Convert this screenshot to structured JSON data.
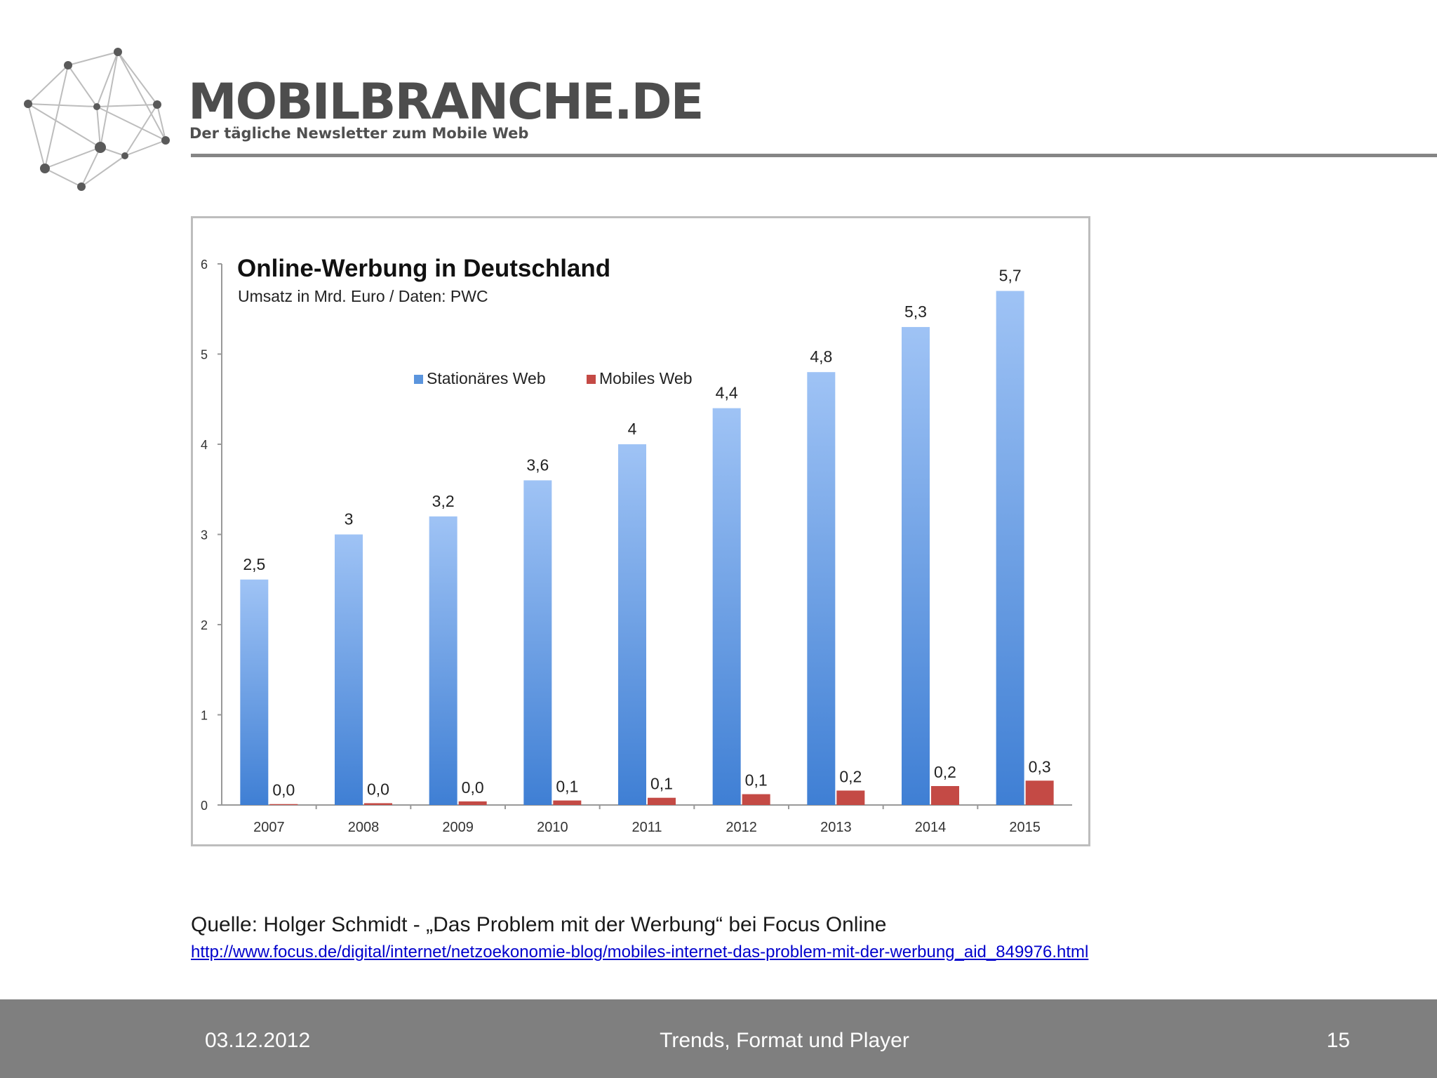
{
  "brand": {
    "name": "MOBILBRANCHE.DE",
    "tagline": "Der tägliche Newsletter zum Mobile Web"
  },
  "colors": {
    "stationary": "#5b95dd",
    "mobile": "#c44a45",
    "footer": "#7f7f7f",
    "header_rule": "#858585"
  },
  "chart_data": {
    "type": "bar",
    "title": "Online-Werbung in Deutschland",
    "subtitle": "Umsatz in Mrd. Euro / Daten: PWC",
    "xlabel": "",
    "ylabel": "",
    "ylim": [
      0,
      6
    ],
    "yticks": [
      "0",
      "1",
      "2",
      "3",
      "4",
      "5",
      "6"
    ],
    "grid": false,
    "legend_position": "top-center",
    "categories": [
      "2007",
      "2008",
      "2009",
      "2010",
      "2011",
      "2012",
      "2013",
      "2014",
      "2015"
    ],
    "series": [
      {
        "name": "Stationäres Web",
        "values": [
          2.5,
          3.0,
          3.2,
          3.6,
          4.0,
          4.4,
          4.8,
          5.3,
          5.7
        ],
        "labels": [
          "2,5",
          "3",
          "3,2",
          "3,6",
          "4",
          "4,4",
          "4,8",
          "5,3",
          "5,7"
        ]
      },
      {
        "name": "Mobiles Web",
        "values": [
          0.01,
          0.02,
          0.04,
          0.05,
          0.08,
          0.12,
          0.16,
          0.21,
          0.27
        ],
        "labels": [
          "0,0",
          "0,0",
          "0,0",
          "0,1",
          "0,1",
          "0,1",
          "0,2",
          "0,2",
          "0,3"
        ]
      }
    ]
  },
  "source": {
    "text": "Quelle: Holger Schmidt - „Das Problem mit der Werbung“ bei Focus Online",
    "url": "http://www.focus.de/digital/internet/netzoekonomie-blog/mobiles-internet-das-problem-mit-der-werbung_aid_849976.html"
  },
  "footer": {
    "date": "03.12.2012",
    "title": "Trends, Format und Player",
    "page": "15"
  }
}
